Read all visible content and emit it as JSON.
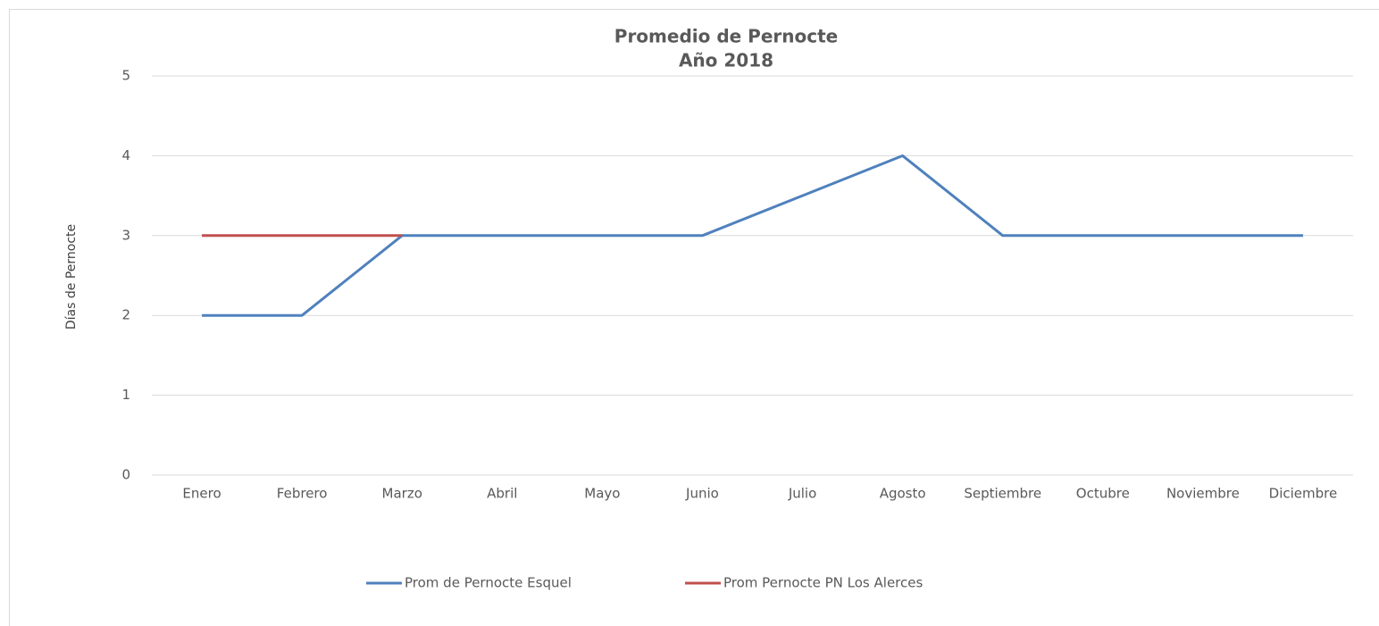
{
  "chart_data": {
    "type": "line",
    "title": "Promedio de Pernocte",
    "subtitle": "Año 2018",
    "y_label": "Días de Pernocte",
    "categories": [
      "Enero",
      "Febrero",
      "Marzo",
      "Abril",
      "Mayo",
      "Junio",
      "Julio",
      "Agosto",
      "Septiembre",
      "Octubre",
      "Noviembre",
      "Diciembre"
    ],
    "series": [
      {
        "name": "Prom de Pernocte Esquel",
        "color": "#4f81bd",
        "values": [
          2,
          2,
          3,
          3,
          3,
          3,
          3.5,
          4,
          3,
          3,
          3,
          3
        ]
      },
      {
        "name": "Prom Pernocte PN Los Alerces",
        "color": "#c0504d",
        "values": [
          3,
          3,
          3,
          null,
          null,
          null,
          null,
          null,
          null,
          null,
          null,
          null
        ]
      }
    ],
    "ylim": [
      0,
      5
    ],
    "yticks": [
      0,
      1,
      2,
      3,
      4,
      5
    ],
    "grid": true,
    "legend": "bottom"
  }
}
